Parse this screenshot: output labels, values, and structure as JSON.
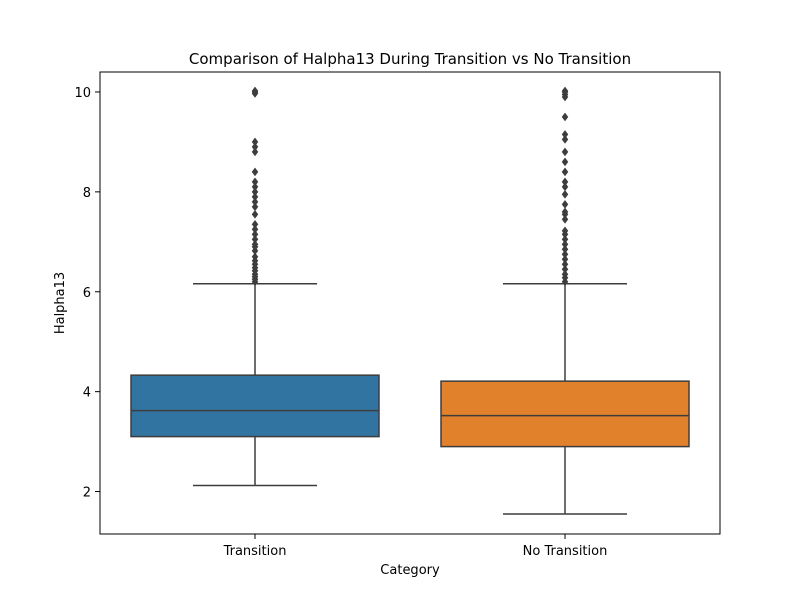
{
  "chart_data": {
    "type": "box",
    "title": "Comparison of Halpha13 During Transition vs No Transition",
    "xlabel": "Category",
    "ylabel": "Halpha13",
    "ylim": [
      1.15,
      10.4
    ],
    "yticks": [
      2,
      4,
      6,
      8,
      10
    ],
    "ytick_labels": [
      "2",
      "4",
      "6",
      "8",
      "10"
    ],
    "grid": false,
    "categories": [
      "Transition",
      "No Transition"
    ],
    "boxes": [
      {
        "category": "Transition",
        "color": "#3274a1",
        "whisker_low": 2.12,
        "q1": 3.1,
        "median": 3.62,
        "q3": 4.33,
        "whisker_high": 6.16,
        "outliers": [
          6.2,
          6.25,
          6.3,
          6.35,
          6.42,
          6.48,
          6.55,
          6.62,
          6.7,
          6.82,
          6.9,
          6.95,
          7.05,
          7.15,
          7.25,
          7.35,
          7.55,
          7.7,
          7.8,
          7.9,
          8.0,
          8.1,
          8.2,
          8.4,
          8.8,
          8.9,
          9.0,
          9.97,
          10.0,
          10.02
        ]
      },
      {
        "category": "No Transition",
        "color": "#e1812c",
        "whisker_low": 1.55,
        "q1": 2.9,
        "median": 3.52,
        "q3": 4.21,
        "whisker_high": 6.16,
        "outliers": [
          6.2,
          6.28,
          6.35,
          6.45,
          6.55,
          6.65,
          6.75,
          6.85,
          6.95,
          7.05,
          7.15,
          7.22,
          7.45,
          7.55,
          7.6,
          7.75,
          7.95,
          8.1,
          8.2,
          8.4,
          8.6,
          8.8,
          9.05,
          9.15,
          9.5,
          9.9,
          9.95,
          10.0,
          10.02
        ]
      }
    ]
  }
}
